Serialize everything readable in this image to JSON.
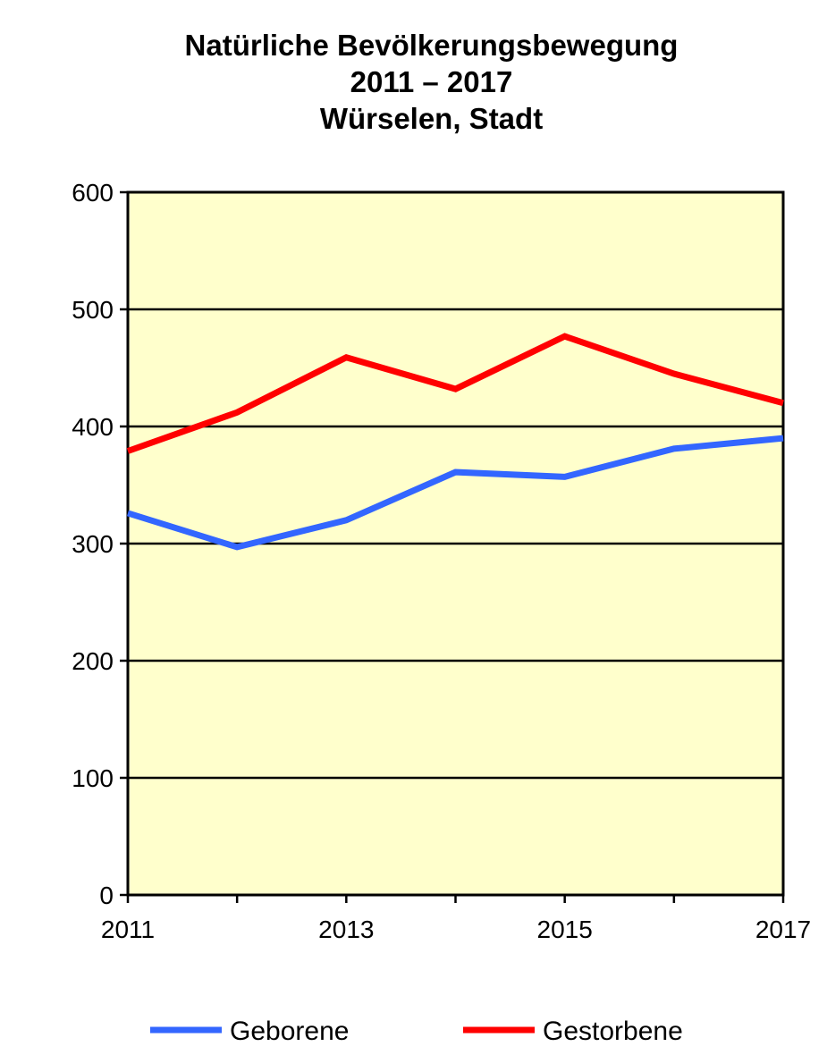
{
  "chart_data": {
    "type": "line",
    "title_lines": [
      "Natürliche Bevölkerungsbewegung",
      "2011 – 2017",
      "Würselen, Stadt"
    ],
    "xlabel": "",
    "ylabel": "",
    "x": [
      2011,
      2012,
      2013,
      2014,
      2015,
      2016,
      2017
    ],
    "x_tick_labels": [
      "2011",
      "",
      "2013",
      "",
      "2015",
      "",
      "2017"
    ],
    "y_ticks": [
      0,
      100,
      200,
      300,
      400,
      500,
      600
    ],
    "ylim": [
      0,
      600
    ],
    "grid": true,
    "plot_background": "#ffffcc",
    "legend_position": "bottom",
    "series": [
      {
        "name": "Geborene",
        "color": "#3366ff",
        "values": [
          326,
          297,
          320,
          361,
          357,
          381,
          390
        ]
      },
      {
        "name": "Gestorbene",
        "color": "#ff0000",
        "values": [
          379,
          412,
          459,
          432,
          477,
          445,
          420
        ]
      }
    ]
  }
}
